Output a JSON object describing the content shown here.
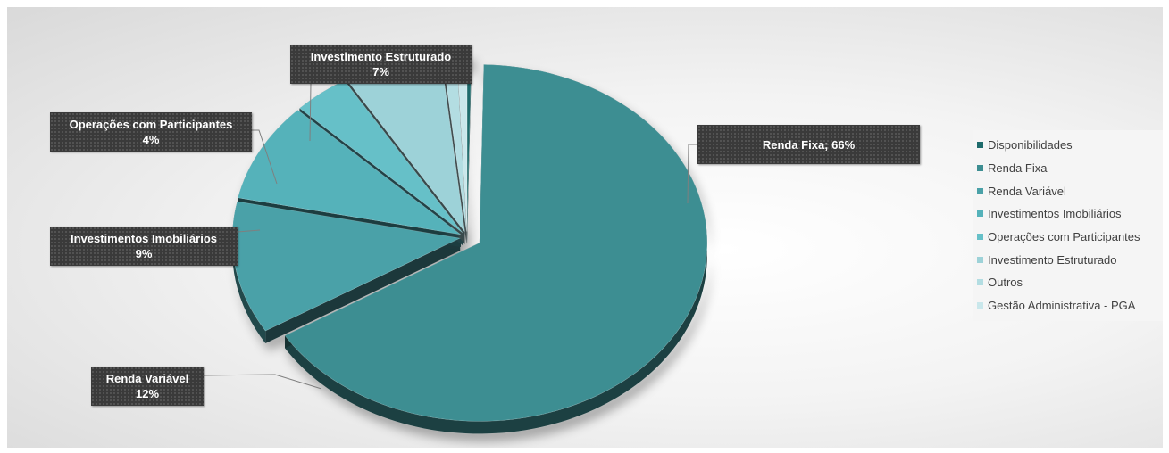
{
  "chart_data": {
    "type": "pie",
    "title": "",
    "colors": {
      "Disponibilidades": "#1e6b6c",
      "Renda Fixa": "#3d8e92",
      "Renda Variável": "#4aa1a8",
      "Investimentos Imobiliários": "#55b2ba",
      "Operações com Participantes": "#66c0c8",
      "Investimento Estruturado": "#9dd2d8",
      "Outros": "#b3dde2",
      "Gestão Administrativa - PGA": "#c9e7eb"
    },
    "slices": [
      {
        "label": "Disponibilidades",
        "value": 0.3
      },
      {
        "label": "Renda Fixa",
        "value": 66
      },
      {
        "label": "Renda Variável",
        "value": 12
      },
      {
        "label": "Investimentos Imobiliários",
        "value": 9
      },
      {
        "label": "Operações com Participantes",
        "value": 4
      },
      {
        "label": "Investimento Estruturado",
        "value": 7
      },
      {
        "label": "Outros",
        "value": 1
      },
      {
        "label": "Gestão Administrativa - PGA",
        "value": 0.7
      }
    ],
    "data_labels": [
      {
        "slice": "Renda Fixa",
        "line1": "Renda Fixa; 66%",
        "line2": ""
      },
      {
        "slice": "Investimento Estruturado",
        "line1": "Investimento Estruturado",
        "line2": "7%"
      },
      {
        "slice": "Operações com Participantes",
        "line1": "Operações com Participantes",
        "line2": "4%"
      },
      {
        "slice": "Investimentos Imobiliários",
        "line1": "Investimentos Imobiliários",
        "line2": "9%"
      },
      {
        "slice": "Renda Variável",
        "line1": "Renda Variável",
        "line2": "12%"
      }
    ],
    "legend": {
      "position": "right",
      "items": [
        "Disponibilidades",
        "Renda Fixa",
        "Renda Variável",
        "Investimentos Imobiliários",
        "Operações com Participantes",
        "Investimento Estruturado",
        "Outros",
        "Gestão Administrativa - PGA"
      ]
    }
  }
}
